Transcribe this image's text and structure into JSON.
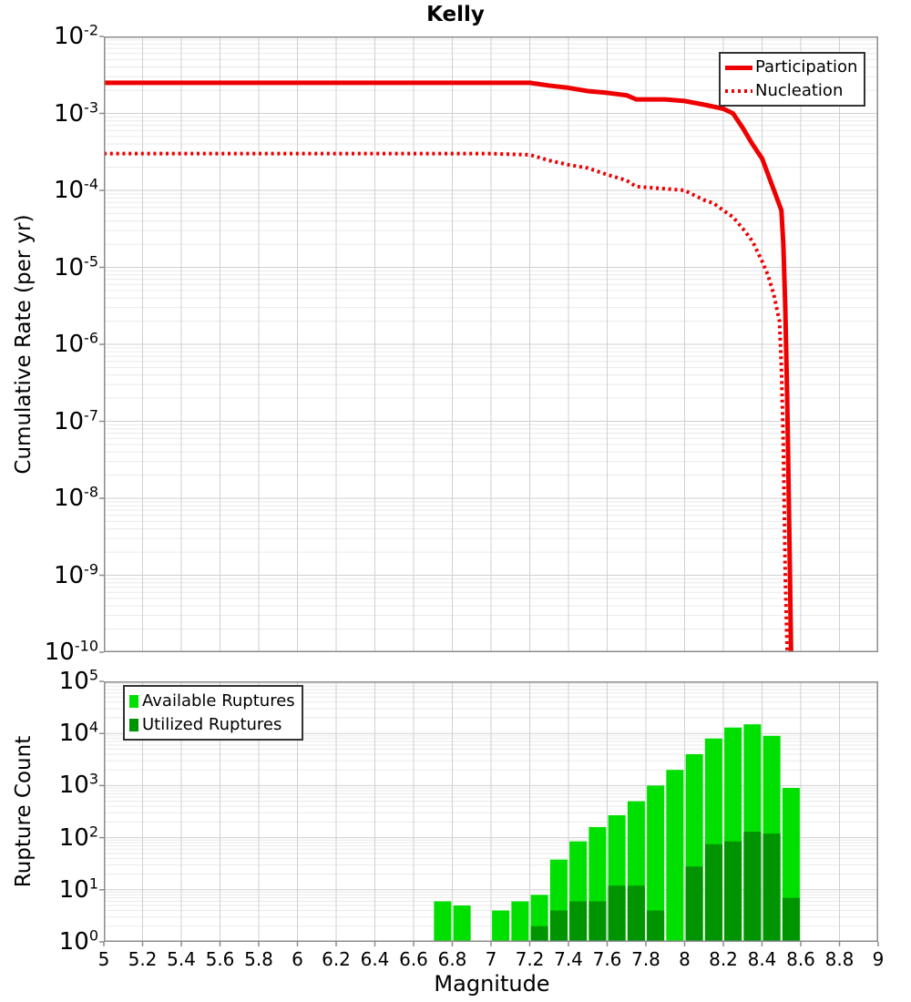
{
  "title": "Kelly",
  "colors": {
    "line_red": "#ee0000",
    "available_green": "#00e000",
    "utilized_green": "#009400",
    "grid_major": "#d0d0d0",
    "grid_minor": "#eaeaea",
    "frame_gray": "#8c8c8c",
    "legend_border": "#333333"
  },
  "chart_data": [
    {
      "type": "line",
      "title": "Kelly",
      "ylabel": "Cumulative Rate (per yr)",
      "xlabel": "",
      "xlim": [
        5,
        9
      ],
      "ylog": true,
      "ylim": [
        1e-10,
        0.01
      ],
      "y_tick_exponents": [
        -2,
        -3,
        -4,
        -5,
        -6,
        -7,
        -8,
        -9,
        -10
      ],
      "grid": true,
      "legend": {
        "position": "top-right",
        "entries": [
          "Participation",
          "Nucleation"
        ]
      },
      "series": [
        {
          "name": "Participation",
          "style": "solid",
          "color": "#ee0000",
          "points": [
            [
              5.0,
              0.0025
            ],
            [
              6.0,
              0.0025
            ],
            [
              7.0,
              0.0025
            ],
            [
              7.2,
              0.0025
            ],
            [
              7.3,
              0.0023
            ],
            [
              7.4,
              0.00215
            ],
            [
              7.5,
              0.00195
            ],
            [
              7.6,
              0.00185
            ],
            [
              7.7,
              0.00172
            ],
            [
              7.75,
              0.00152
            ],
            [
              7.9,
              0.00152
            ],
            [
              8.0,
              0.00145
            ],
            [
              8.1,
              0.0013
            ],
            [
              8.2,
              0.00115
            ],
            [
              8.25,
              0.001
            ],
            [
              8.3,
              0.00065
            ],
            [
              8.35,
              0.0004
            ],
            [
              8.4,
              0.00026
            ],
            [
              8.45,
              0.00012
            ],
            [
              8.5,
              5.5e-05
            ],
            [
              8.51,
              2e-05
            ],
            [
              8.52,
              3e-06
            ],
            [
              8.53,
              2e-07
            ],
            [
              8.54,
              5e-09
            ],
            [
              8.55,
              1e-10
            ]
          ]
        },
        {
          "name": "Nucleation",
          "style": "dotted",
          "color": "#ee0000",
          "points": [
            [
              5.0,
              0.0003
            ],
            [
              6.0,
              0.0003
            ],
            [
              7.0,
              0.0003
            ],
            [
              7.2,
              0.00029
            ],
            [
              7.3,
              0.000245
            ],
            [
              7.4,
              0.000215
            ],
            [
              7.5,
              0.000195
            ],
            [
              7.6,
              0.00016
            ],
            [
              7.7,
              0.000135
            ],
            [
              7.75,
              0.000112
            ],
            [
              7.9,
              0.000105
            ],
            [
              8.0,
              0.0001
            ],
            [
              8.1,
              7.5e-05
            ],
            [
              8.15,
              6.8e-05
            ],
            [
              8.2,
              5.5e-05
            ],
            [
              8.25,
              4.5e-05
            ],
            [
              8.3,
              3.2e-05
            ],
            [
              8.35,
              2.2e-05
            ],
            [
              8.4,
              1.2e-05
            ],
            [
              8.43,
              8e-06
            ],
            [
              8.46,
              4.5e-06
            ],
            [
              8.49,
              2e-06
            ],
            [
              8.5,
              5e-07
            ],
            [
              8.51,
              5e-08
            ],
            [
              8.52,
              1e-09
            ],
            [
              8.53,
              1e-10
            ]
          ]
        }
      ]
    },
    {
      "type": "bar",
      "title": "",
      "ylabel": "Rupture Count",
      "xlabel": "Magnitude",
      "xlim": [
        5,
        9
      ],
      "ylog": true,
      "ylim": [
        1,
        100000
      ],
      "y_tick_exponents": [
        5,
        4,
        3,
        2,
        1,
        0
      ],
      "x_tick_values": [
        5,
        5.2,
        5.4,
        5.6,
        5.8,
        6,
        6.2,
        6.4,
        6.6,
        6.8,
        7,
        7.2,
        7.4,
        7.6,
        7.8,
        8,
        8.2,
        8.4,
        8.6,
        8.8,
        9
      ],
      "x_tick_labels": [
        "5",
        "5.2",
        "5.4",
        "5.6",
        "5.8",
        "6",
        "6.2",
        "6.4",
        "6.6",
        "6.8",
        "7",
        "7.2",
        "7.4",
        "7.6",
        "7.8",
        "8",
        "8.2",
        "8.4",
        "8.6",
        "8.8",
        "9"
      ],
      "bin_width": 0.1,
      "grid": true,
      "legend": {
        "position": "top-left",
        "entries": [
          "Available Ruptures",
          "Utilized Ruptures"
        ]
      },
      "series": [
        {
          "name": "Available Ruptures",
          "color": "#00e000",
          "bins": [
            [
              6.7,
              6
            ],
            [
              6.8,
              5
            ],
            [
              7.0,
              4
            ],
            [
              7.1,
              6
            ],
            [
              7.2,
              8
            ],
            [
              7.3,
              38
            ],
            [
              7.4,
              85
            ],
            [
              7.5,
              160
            ],
            [
              7.6,
              270
            ],
            [
              7.7,
              500
            ],
            [
              7.8,
              1000
            ],
            [
              7.9,
              2000
            ],
            [
              8.0,
              4000
            ],
            [
              8.1,
              8000
            ],
            [
              8.2,
              13000
            ],
            [
              8.3,
              15000
            ],
            [
              8.4,
              9000
            ],
            [
              8.5,
              900
            ]
          ]
        },
        {
          "name": "Utilized Ruptures",
          "color": "#009400",
          "bins": [
            [
              7.2,
              2
            ],
            [
              7.3,
              4
            ],
            [
              7.4,
              6
            ],
            [
              7.5,
              6
            ],
            [
              7.6,
              12
            ],
            [
              7.7,
              12
            ],
            [
              7.8,
              4
            ],
            [
              8.0,
              28
            ],
            [
              8.1,
              75
            ],
            [
              8.2,
              85
            ],
            [
              8.3,
              130
            ],
            [
              8.4,
              120
            ],
            [
              8.5,
              7
            ]
          ]
        }
      ]
    }
  ]
}
